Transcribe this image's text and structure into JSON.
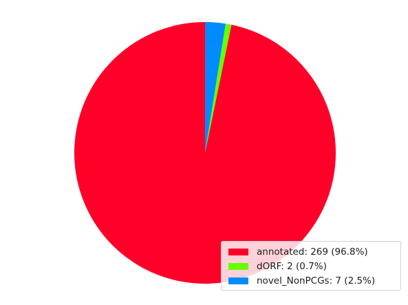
{
  "chart_data": {
    "type": "pie",
    "title": "",
    "categories": [
      "annotated",
      "dORF",
      "novel_NonPCGs"
    ],
    "values": [
      269,
      2,
      7
    ],
    "percentages": [
      96.8,
      0.7,
      2.5
    ],
    "colors": [
      "#ff0029",
      "#66ff00",
      "#008cff"
    ],
    "start_angle_deg": 90,
    "direction": "counterclockwise",
    "legend": {
      "placement": "lower-right",
      "entries": [
        {
          "label": "annotated: 269 (96.8%)",
          "color": "#ff0029"
        },
        {
          "label": "dORF: 2 (0.7%)",
          "color": "#66ff00"
        },
        {
          "label": "novel_NonPCGs: 7 (2.5%)",
          "color": "#008cff"
        }
      ]
    }
  }
}
